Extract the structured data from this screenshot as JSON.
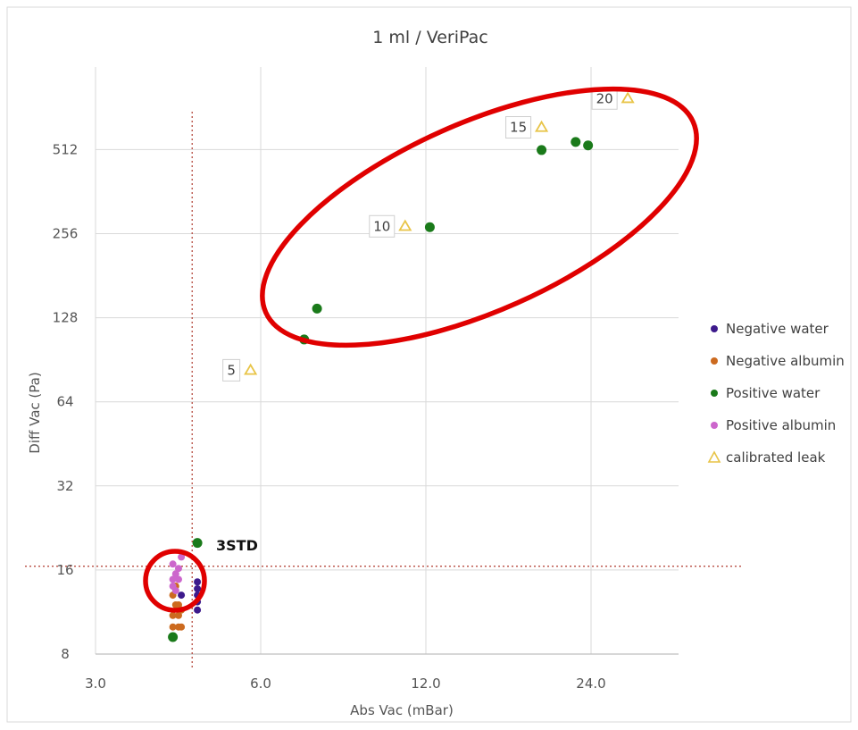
{
  "chart_data": {
    "type": "scatter",
    "title": "1 ml / VeriPac",
    "xlabel": "Abs Vac (mBar)",
    "ylabel": "Diff Vac (Pa)",
    "x_scale": "log2",
    "y_scale": "log2",
    "xlim": [
      3.0,
      32.0
    ],
    "ylim": [
      8,
      1024
    ],
    "x_ticks": [
      "3.0",
      "6.0",
      "12.0",
      "24.0"
    ],
    "y_ticks": [
      "8",
      "16",
      "32",
      "64",
      "128",
      "256",
      "512"
    ],
    "grid": true,
    "legend_position": "right",
    "series": [
      {
        "name": "Negative water",
        "marker": "circle",
        "color": "#3d1a8c",
        "points": [
          [
            4.6,
            14.5
          ],
          [
            4.6,
            13.7
          ],
          [
            4.6,
            13.0
          ],
          [
            4.6,
            12.3
          ],
          [
            4.6,
            11.5
          ],
          [
            4.3,
            13.0
          ]
        ]
      },
      {
        "name": "Negative albumin",
        "marker": "circle",
        "color": "#cc6a1f",
        "points": [
          [
            4.15,
            13.0
          ],
          [
            4.2,
            12.0
          ],
          [
            4.25,
            12.0
          ],
          [
            4.15,
            11.0
          ],
          [
            4.25,
            11.0
          ],
          [
            4.15,
            10.0
          ],
          [
            4.25,
            10.0
          ],
          [
            4.3,
            10.0
          ],
          [
            4.3,
            11.5
          ],
          [
            4.2,
            14.0
          ]
        ]
      },
      {
        "name": "Positive water",
        "marker": "circle",
        "color": "#1a7a1a",
        "points": [
          [
            4.15,
            9.2
          ],
          [
            4.6,
            20.0
          ],
          [
            7.2,
            107
          ],
          [
            7.6,
            138
          ],
          [
            12.2,
            270
          ],
          [
            19.5,
            510
          ],
          [
            22.5,
            545
          ],
          [
            23.7,
            530
          ]
        ]
      },
      {
        "name": "Positive albumin",
        "marker": "circle",
        "color": "#cc66cc",
        "points": [
          [
            4.15,
            16.8
          ],
          [
            4.25,
            16.2
          ],
          [
            4.2,
            15.5
          ],
          [
            4.15,
            14.8
          ],
          [
            4.25,
            14.8
          ],
          [
            4.15,
            14.0
          ],
          [
            4.3,
            17.8
          ],
          [
            4.2,
            13.5
          ]
        ]
      },
      {
        "name": "calibrated leak",
        "marker": "triangle",
        "color": "#e8c447",
        "points": [
          [
            5.75,
            83
          ],
          [
            11.0,
            272
          ],
          [
            19.5,
            615
          ],
          [
            28.0,
            780
          ]
        ],
        "labels": [
          "5",
          "10",
          "15",
          "20"
        ]
      }
    ],
    "reference_lines": {
      "vertical_x": 4.5,
      "horizontal_y": 16.5
    },
    "annotations": [
      {
        "text": "3STD",
        "bold": true
      }
    ],
    "highlights": [
      {
        "shape": "ellipse",
        "color": "#e00000",
        "encloses": "Positive water and calibrated leak (5–20)"
      },
      {
        "shape": "circle",
        "color": "#e00000",
        "encloses": "low cluster near 16 Pa"
      }
    ]
  }
}
